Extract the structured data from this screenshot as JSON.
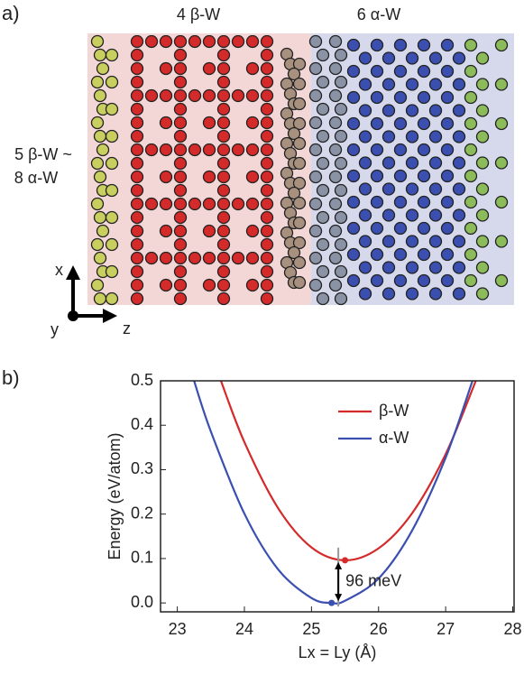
{
  "panel_a": {
    "label": "a)",
    "top_left": "4 β-W",
    "top_right": "6 α-W",
    "side_line1": "5 β-W ~",
    "side_line2": "8 α-W",
    "axis_x": "x",
    "axis_y": "y",
    "axis_z": "z"
  },
  "chart_data": {
    "type": "line",
    "panel_label": "b)",
    "y_label": "Energy  (eV/atom)",
    "x_label": "Lx = Ly (Å)",
    "xlim": [
      22.75,
      28.02
    ],
    "xticks": [
      23,
      24,
      25,
      26,
      27,
      28
    ],
    "ylim": [
      -0.02,
      0.5
    ],
    "yticks": [
      {
        "value": 0,
        "label": "0.0"
      },
      0.1,
      0.2,
      0.3,
      0.4,
      0.5
    ],
    "legend": "upper right",
    "annotation": "96 meV",
    "series": [
      {
        "name": "β-W",
        "color": "#d42a2a",
        "x": [
          23.65,
          24,
          24.5,
          25,
          25.5,
          26,
          26.5,
          27,
          27.45
        ],
        "values": [
          0.5,
          0.362,
          0.214,
          0.125,
          0.096,
          0.123,
          0.202,
          0.335,
          0.5
        ]
      },
      {
        "name": "α-W",
        "color": "#3a4fb0",
        "x": [
          23.25,
          23.5,
          24,
          24.5,
          25,
          25.3,
          25.5,
          26,
          26.5,
          27,
          27.4
        ],
        "values": [
          0.5,
          0.386,
          0.201,
          0.076,
          0.011,
          0,
          0.005,
          0.055,
          0.163,
          0.327,
          0.5
        ]
      }
    ]
  }
}
